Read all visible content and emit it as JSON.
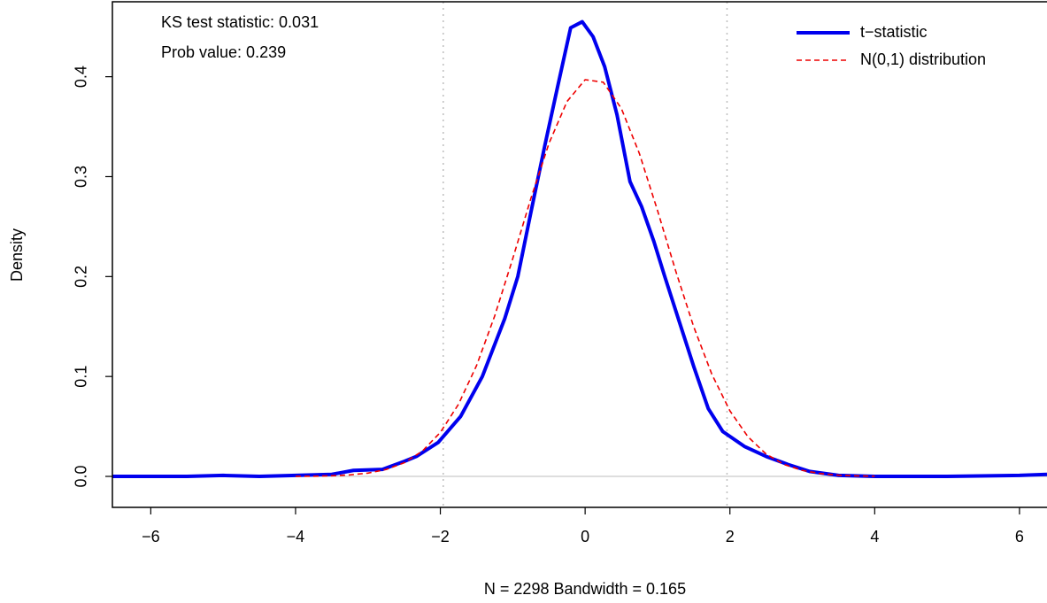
{
  "chart_data": {
    "type": "line",
    "xlabel": "N = 2298 Bandwidth = 0.165",
    "ylabel": "Density",
    "annotations": [
      "KS test statistic:  0.031",
      "Prob value:  0.239"
    ],
    "xlim": [
      -6.53,
      6.38
    ],
    "ylim": [
      -0.031,
      0.475
    ],
    "xticks": [
      {
        "value": -6,
        "label": "−6"
      },
      {
        "value": -4,
        "label": "−4"
      },
      {
        "value": -2,
        "label": "−2"
      },
      0,
      2,
      4,
      6
    ],
    "yticks": [
      {
        "value": 0,
        "label": "0.0"
      },
      0.1,
      0.2,
      0.3,
      0.4
    ],
    "vlines": [
      -1.96,
      1.96
    ],
    "hlines": [
      0
    ],
    "legend": "top-right",
    "series": [
      {
        "name": "t−statistic",
        "color": "#0000ee",
        "style": "solid",
        "x": [
          -6.53,
          -5.5,
          -5,
          -4.5,
          -4,
          -3.5,
          -3.2,
          -2.8,
          -2.5,
          -2.33,
          -2.03,
          -1.72,
          -1.42,
          -1.11,
          -0.93,
          -0.75,
          -0.56,
          -0.38,
          -0.2,
          -0.04,
          0.11,
          0.27,
          0.44,
          0.62,
          0.78,
          0.95,
          1.1,
          1.3,
          1.5,
          1.7,
          1.9,
          2.2,
          2.5,
          2.8,
          3.1,
          3.5,
          4,
          5,
          6,
          6.38
        ],
        "values": [
          0,
          0,
          0.001,
          0,
          0.001,
          0.002,
          0.006,
          0.007,
          0.015,
          0.02,
          0.034,
          0.06,
          0.1,
          0.158,
          0.2,
          0.264,
          0.33,
          0.39,
          0.449,
          0.455,
          0.44,
          0.41,
          0.362,
          0.295,
          0.27,
          0.235,
          0.2,
          0.155,
          0.11,
          0.068,
          0.045,
          0.03,
          0.02,
          0.012,
          0.005,
          0.001,
          0,
          0,
          0.001,
          0.002
        ]
      },
      {
        "name": "N(0,1) distribution",
        "color": "#ee0000",
        "style": "dashed",
        "x": [
          -4,
          -3.75,
          -3.5,
          -3.25,
          -3,
          -2.75,
          -2.5,
          -2.25,
          -2,
          -1.75,
          -1.5,
          -1.25,
          -1,
          -0.75,
          -0.5,
          -0.25,
          0,
          0.25,
          0.5,
          0.75,
          1,
          1.25,
          1.5,
          1.75,
          2,
          2.25,
          2.5,
          2.75,
          3,
          3.25,
          3.5,
          3.75,
          4
        ],
        "values": [
          0.0001,
          0.0002,
          0.0006,
          0.0015,
          0.0033,
          0.0069,
          0.0136,
          0.0252,
          0.044,
          0.0721,
          0.1109,
          0.1604,
          0.2179,
          0.278,
          0.3332,
          0.3752,
          0.397,
          0.3945,
          0.3683,
          0.323,
          0.2661,
          0.2059,
          0.1497,
          0.1023,
          0.0656,
          0.0396,
          0.0224,
          0.0119,
          0.006,
          0.0028,
          0.0012,
          0.0005,
          0.0002
        ]
      }
    ]
  }
}
